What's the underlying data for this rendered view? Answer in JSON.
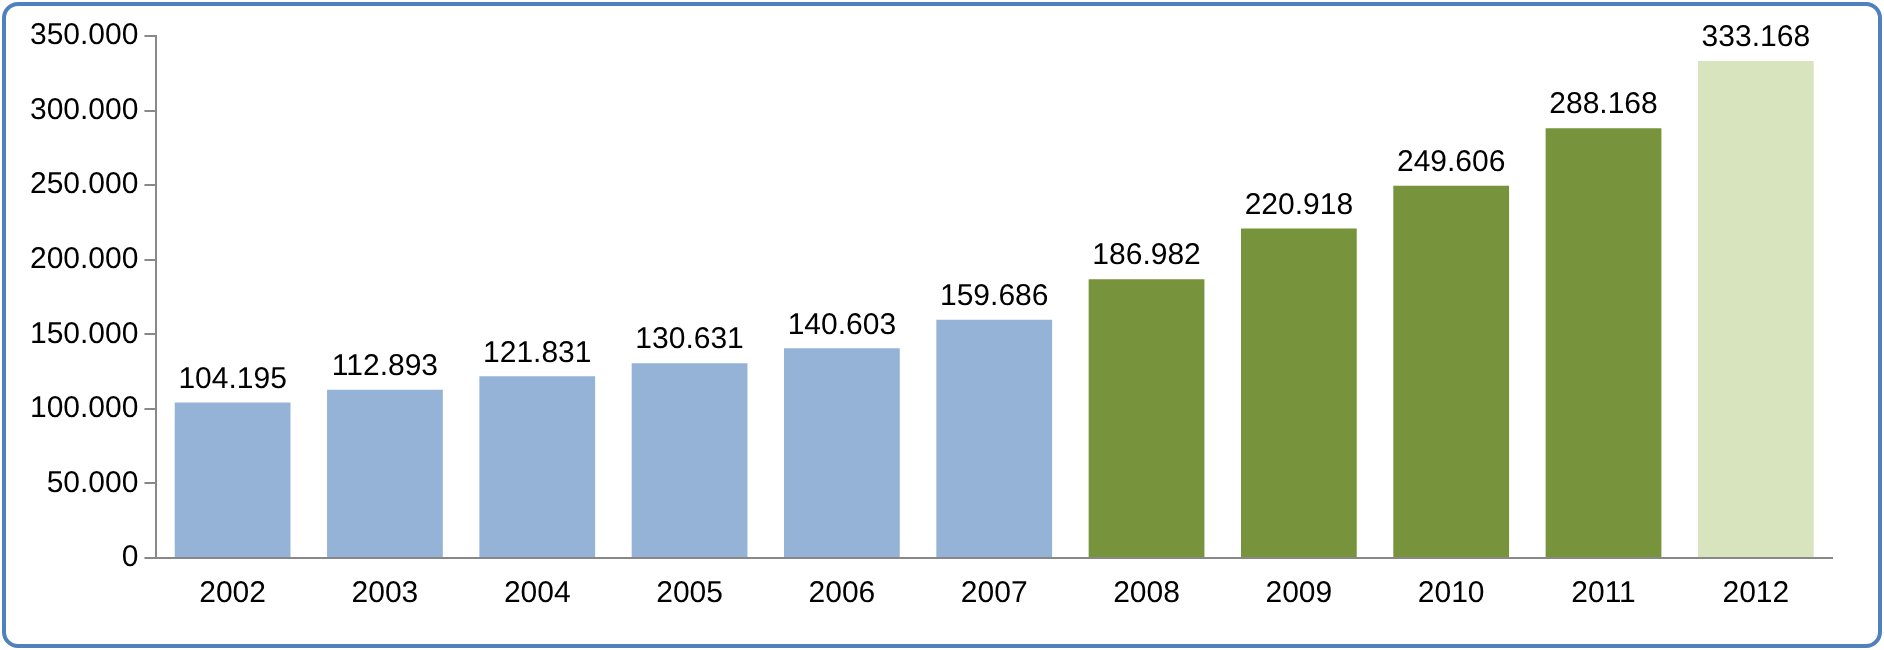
{
  "chart_data": {
    "type": "bar",
    "categories": [
      "2002",
      "2003",
      "2004",
      "2005",
      "2006",
      "2007",
      "2008",
      "2009",
      "2010",
      "2011",
      "2012"
    ],
    "values": [
      104195,
      112893,
      121831,
      130631,
      140603,
      159686,
      186982,
      220918,
      249606,
      288168,
      333168
    ],
    "value_labels": [
      "104.195",
      "112.893",
      "121.831",
      "130.631",
      "140.603",
      "159.686",
      "186.982",
      "220.918",
      "249.606",
      "288.168",
      "333.168"
    ],
    "colors": [
      "#95b3d7",
      "#95b3d7",
      "#95b3d7",
      "#95b3d7",
      "#95b3d7",
      "#95b3d7",
      "#77933c",
      "#77933c",
      "#77933c",
      "#77933c",
      "#d7e4bd"
    ],
    "ylim": [
      0,
      350000
    ],
    "yticks": [
      {
        "value": 0,
        "label": "0"
      },
      {
        "value": 50000,
        "label": "50.000"
      },
      {
        "value": 100000,
        "label": "100.000"
      },
      {
        "value": 150000,
        "label": "150.000"
      },
      {
        "value": 200000,
        "label": "200.000"
      },
      {
        "value": 250000,
        "label": "250.000"
      },
      {
        "value": 300000,
        "label": "300.000"
      },
      {
        "value": 350000,
        "label": "350.000"
      }
    ],
    "grid": false,
    "legend": false
  }
}
